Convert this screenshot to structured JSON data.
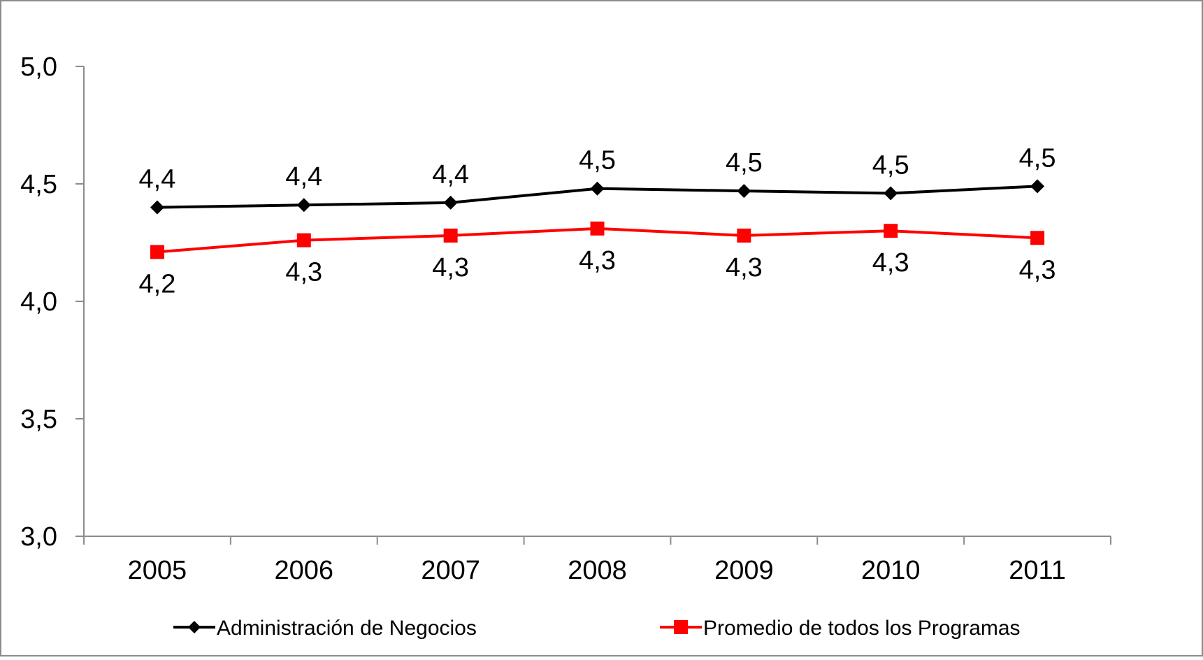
{
  "chart_data": {
    "type": "line",
    "title": "",
    "xlabel": "",
    "ylabel": "",
    "categories": [
      "2005",
      "2006",
      "2007",
      "2008",
      "2009",
      "2010",
      "2011"
    ],
    "ylim": [
      3.0,
      5.0
    ],
    "yticks": [
      {
        "value": 3.0,
        "label": "3,0"
      },
      {
        "value": 3.5,
        "label": "3,5"
      },
      {
        "value": 4.0,
        "label": "4,0"
      },
      {
        "value": 4.5,
        "label": "4,5"
      },
      {
        "value": 5.0,
        "label": "5,0"
      }
    ],
    "grid": false,
    "legend_position": "bottom",
    "series": [
      {
        "name": "Administración de Negocios",
        "color": "#000000",
        "marker": "diamond",
        "label_position": "above",
        "values": [
          4.4,
          4.41,
          4.42,
          4.48,
          4.47,
          4.46,
          4.49
        ],
        "labels": [
          "4,4",
          "4,4",
          "4,4",
          "4,5",
          "4,5",
          "4,5",
          "4,5"
        ]
      },
      {
        "name": "Promedio de todos los Programas",
        "color": "#ff0000",
        "marker": "square",
        "label_position": "below",
        "values": [
          4.21,
          4.26,
          4.28,
          4.31,
          4.28,
          4.3,
          4.27
        ],
        "labels": [
          "4,2",
          "4,3",
          "4,3",
          "4,3",
          "4,3",
          "4,3",
          "4,3"
        ]
      }
    ]
  }
}
